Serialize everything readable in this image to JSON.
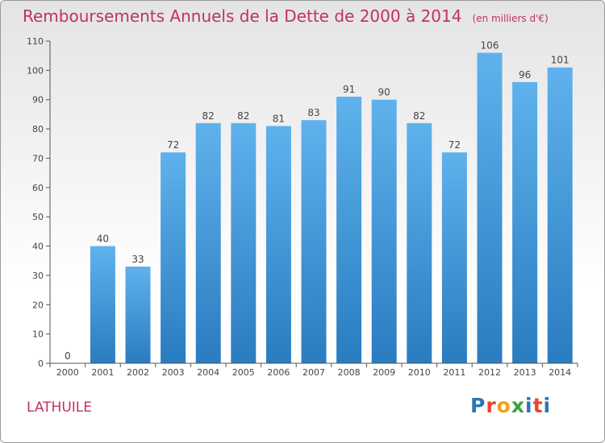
{
  "title": "Remboursements Annuels de la Dette de 2000 à 2014",
  "unit": "(en milliers d'€)",
  "commune": "LATHUILE",
  "logo": {
    "text": "Proxiti",
    "letters": [
      "P",
      "r",
      "o",
      "x",
      "i",
      "t",
      "i"
    ],
    "colors": [
      "#2a76b8",
      "#e8462a",
      "#f2a11a",
      "#3aa23a",
      "#2a76b8",
      "#e8462a",
      "#2a76b8"
    ]
  },
  "chart_data": {
    "type": "bar",
    "title": "Remboursements Annuels de la Dette de 2000 à 2014",
    "subtitle": "(en milliers d'€)",
    "categories": [
      "2000",
      "2001",
      "2002",
      "2003",
      "2004",
      "2005",
      "2006",
      "2007",
      "2008",
      "2009",
      "2010",
      "2011",
      "2012",
      "2013",
      "2014"
    ],
    "values": [
      0,
      40,
      33,
      72,
      82,
      82,
      81,
      83,
      91,
      90,
      82,
      72,
      106,
      96,
      101
    ],
    "yticks": [
      0,
      10,
      20,
      30,
      40,
      50,
      60,
      70,
      80,
      90,
      100,
      110
    ],
    "ylim": [
      0,
      110
    ],
    "xlabel": "",
    "ylabel": "",
    "grid": false,
    "bar_color": "#4a9fe0"
  }
}
